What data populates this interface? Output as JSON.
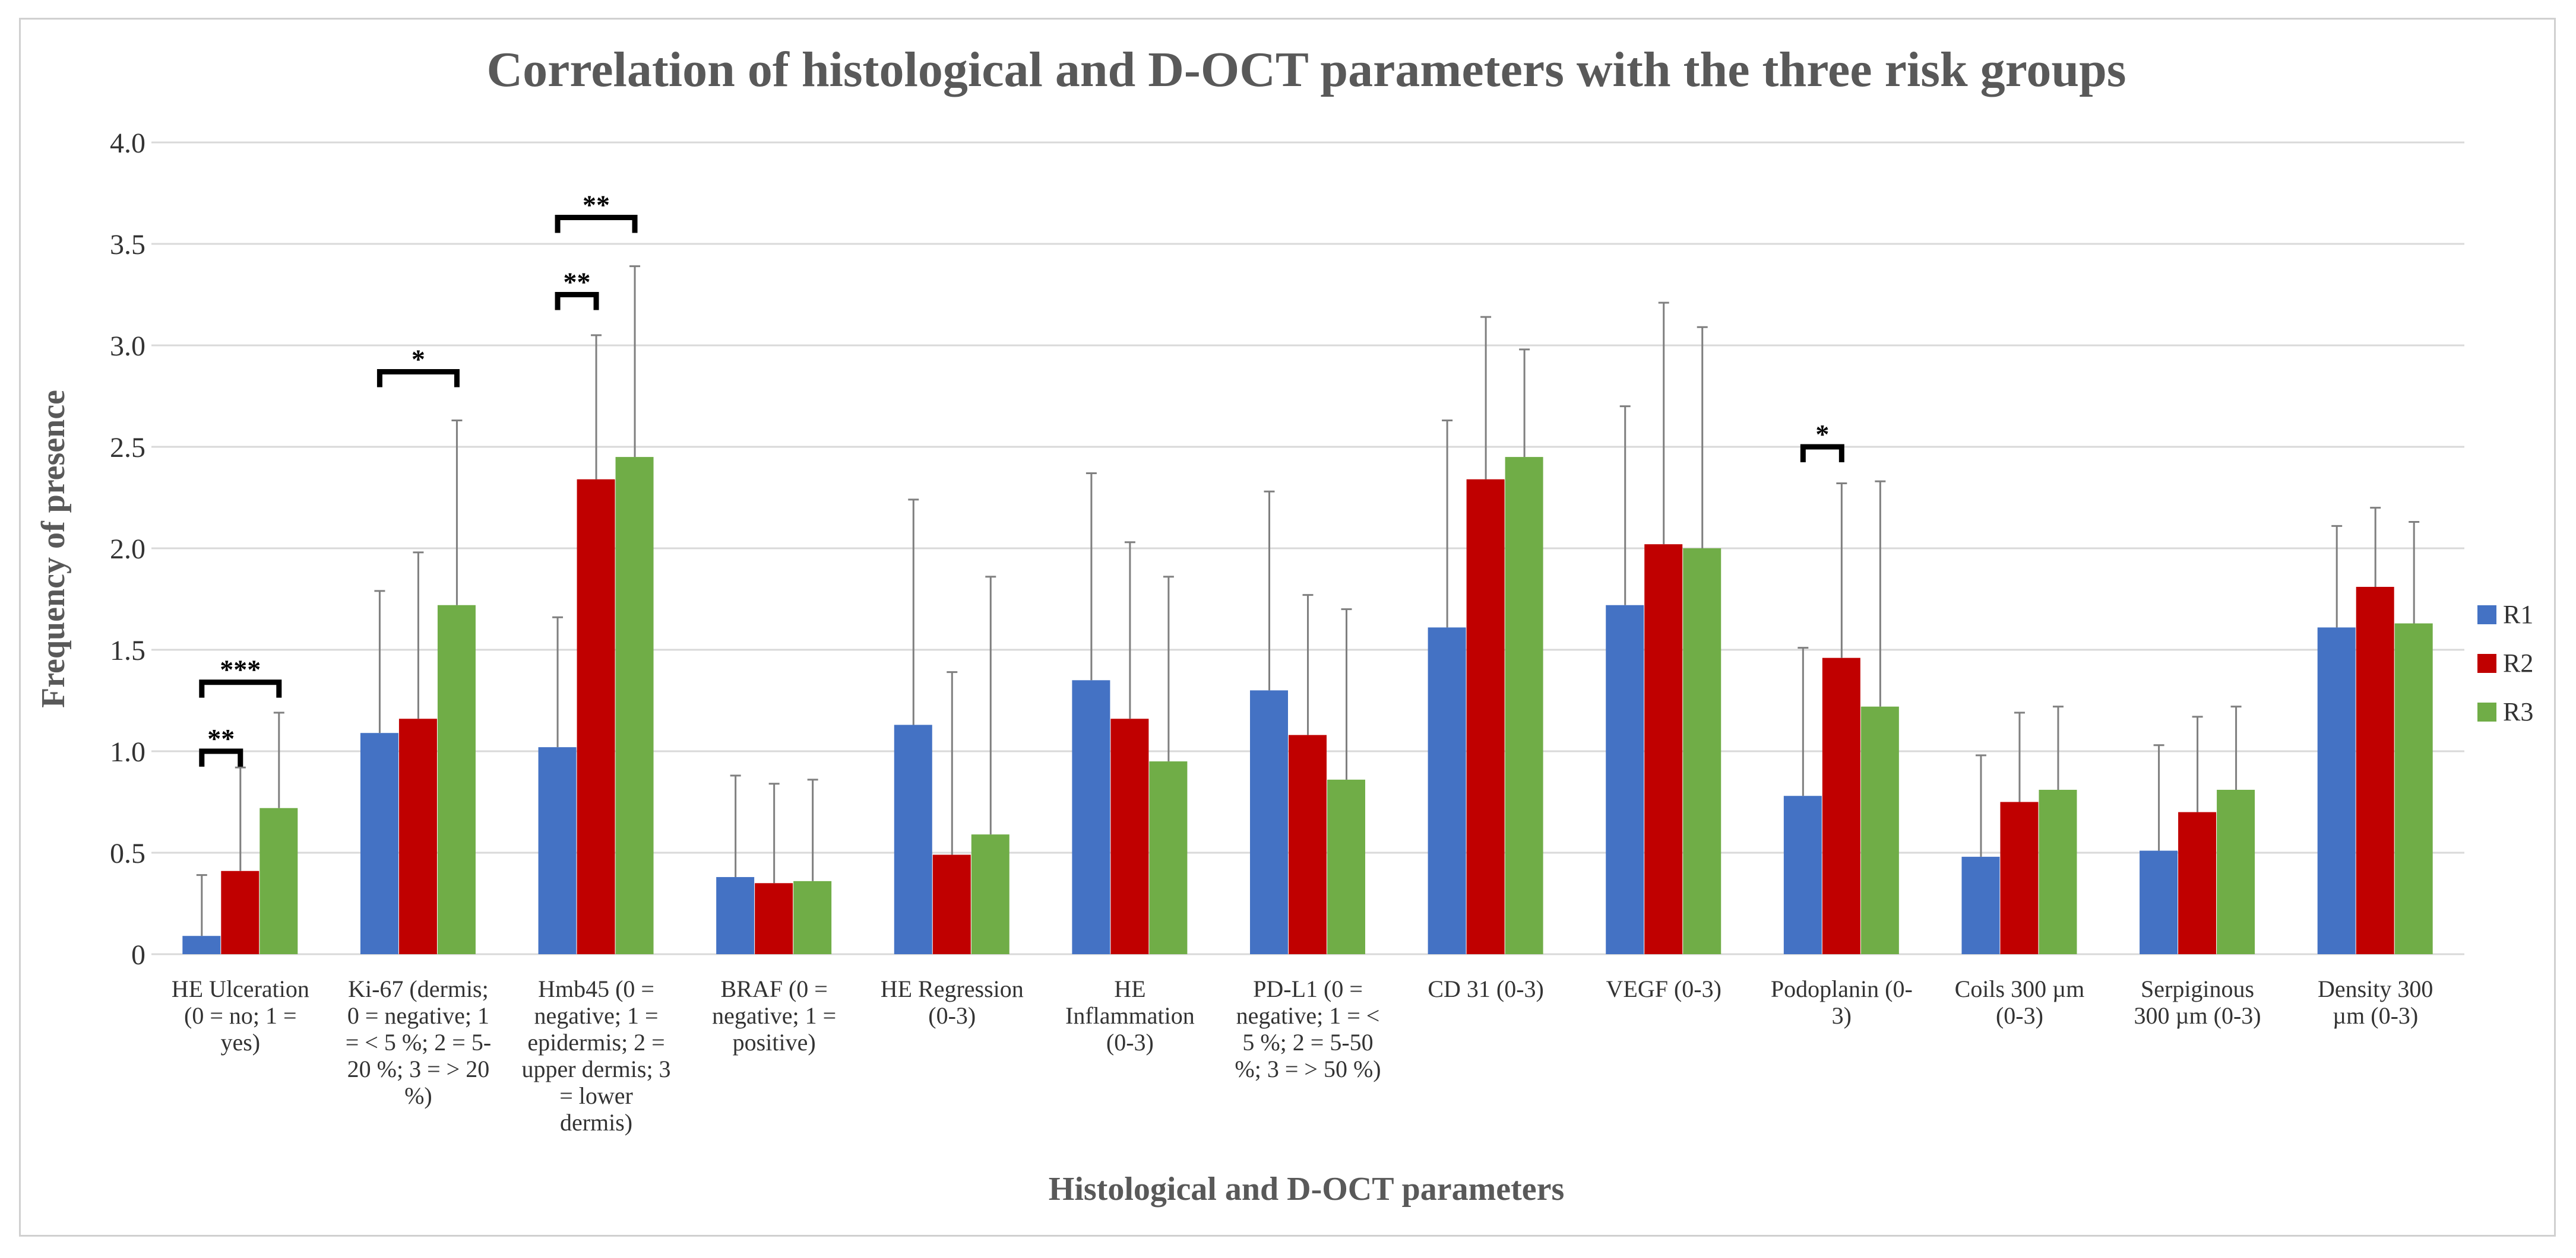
{
  "chart_data": {
    "type": "bar",
    "title": "Correlation of histological and D-OCT parameters with the three risk groups",
    "xlabel": "Histological and D-OCT parameters",
    "ylabel": "Frequency of presence",
    "ylim": [
      0,
      4.0
    ],
    "yticks": [
      "0",
      "0.5",
      "1.0",
      "1.5",
      "2.0",
      "2.5",
      "3.0",
      "3.5",
      "4.0"
    ],
    "grid": true,
    "legend_position": "right",
    "categories": [
      [
        "HE Ulceration",
        "(0 = no;  1 =",
        "yes)"
      ],
      [
        "Ki-67 (dermis;",
        "0 = negative; 1",
        "= < 5 %; 2 = 5-",
        "20 %; 3 = > 20",
        "%)"
      ],
      [
        "Hmb45 (0 =",
        "negative; 1 =",
        "epidermis; 2 =",
        "upper dermis; 3",
        "= lower",
        "dermis)"
      ],
      [
        "BRAF (0 =",
        "negative; 1 =",
        "positive)"
      ],
      [
        "HE Regression",
        "(0-3)"
      ],
      [
        "HE",
        "Inflammation",
        "(0-3)"
      ],
      [
        "PD-L1 (0 =",
        "negative; 1 = <",
        "5 %; 2 = 5-50",
        "%; 3 = > 50 %)"
      ],
      [
        "CD 31 (0-3)"
      ],
      [
        "VEGF (0-3)"
      ],
      [
        "Podoplanin (0-",
        "3)"
      ],
      [
        "Coils 300 µm",
        "(0-3)"
      ],
      [
        "Serpiginous",
        "300 µm (0-3)"
      ],
      [
        "Density 300",
        "µm (0-3)"
      ]
    ],
    "series": [
      {
        "name": "R1",
        "color": "#4472C4",
        "values": [
          0.09,
          1.09,
          1.02,
          0.38,
          1.13,
          1.35,
          1.3,
          1.61,
          1.72,
          0.78,
          0.48,
          0.51,
          1.61
        ],
        "errors": [
          0.3,
          0.7,
          0.64,
          0.5,
          1.11,
          1.02,
          0.98,
          1.02,
          0.98,
          0.73,
          0.5,
          0.52,
          0.5
        ]
      },
      {
        "name": "R2",
        "color": "#C00000",
        "values": [
          0.41,
          1.16,
          2.34,
          0.35,
          0.49,
          1.16,
          1.08,
          2.34,
          2.02,
          1.46,
          0.75,
          0.7,
          1.81
        ],
        "errors": [
          0.51,
          0.82,
          0.71,
          0.49,
          0.9,
          0.87,
          0.69,
          0.8,
          1.19,
          0.86,
          0.44,
          0.47,
          0.39
        ]
      },
      {
        "name": "R3",
        "color": "#70AD47",
        "values": [
          0.72,
          1.72,
          2.45,
          0.36,
          0.59,
          0.95,
          0.86,
          2.45,
          2.0,
          1.22,
          0.81,
          0.81,
          1.63
        ],
        "errors": [
          0.47,
          0.91,
          0.94,
          0.5,
          1.27,
          0.91,
          0.84,
          0.53,
          1.09,
          1.11,
          0.41,
          0.41,
          0.5
        ]
      }
    ],
    "significance": [
      {
        "category": 0,
        "from": "R1",
        "to": "R2",
        "label": "**",
        "y": 1.0
      },
      {
        "category": 0,
        "from": "R1",
        "to": "R3",
        "label": "***",
        "y": 1.34
      },
      {
        "category": 1,
        "from": "R1",
        "to": "R3",
        "label": "*",
        "y": 2.87
      },
      {
        "category": 2,
        "from": "R1",
        "to": "R2",
        "label": "**",
        "y": 3.25
      },
      {
        "category": 2,
        "from": "R1",
        "to": "R3",
        "label": "**",
        "y": 3.63
      },
      {
        "category": 9,
        "from": "R1",
        "to": "R2",
        "label": "*",
        "y": 2.5
      }
    ]
  }
}
